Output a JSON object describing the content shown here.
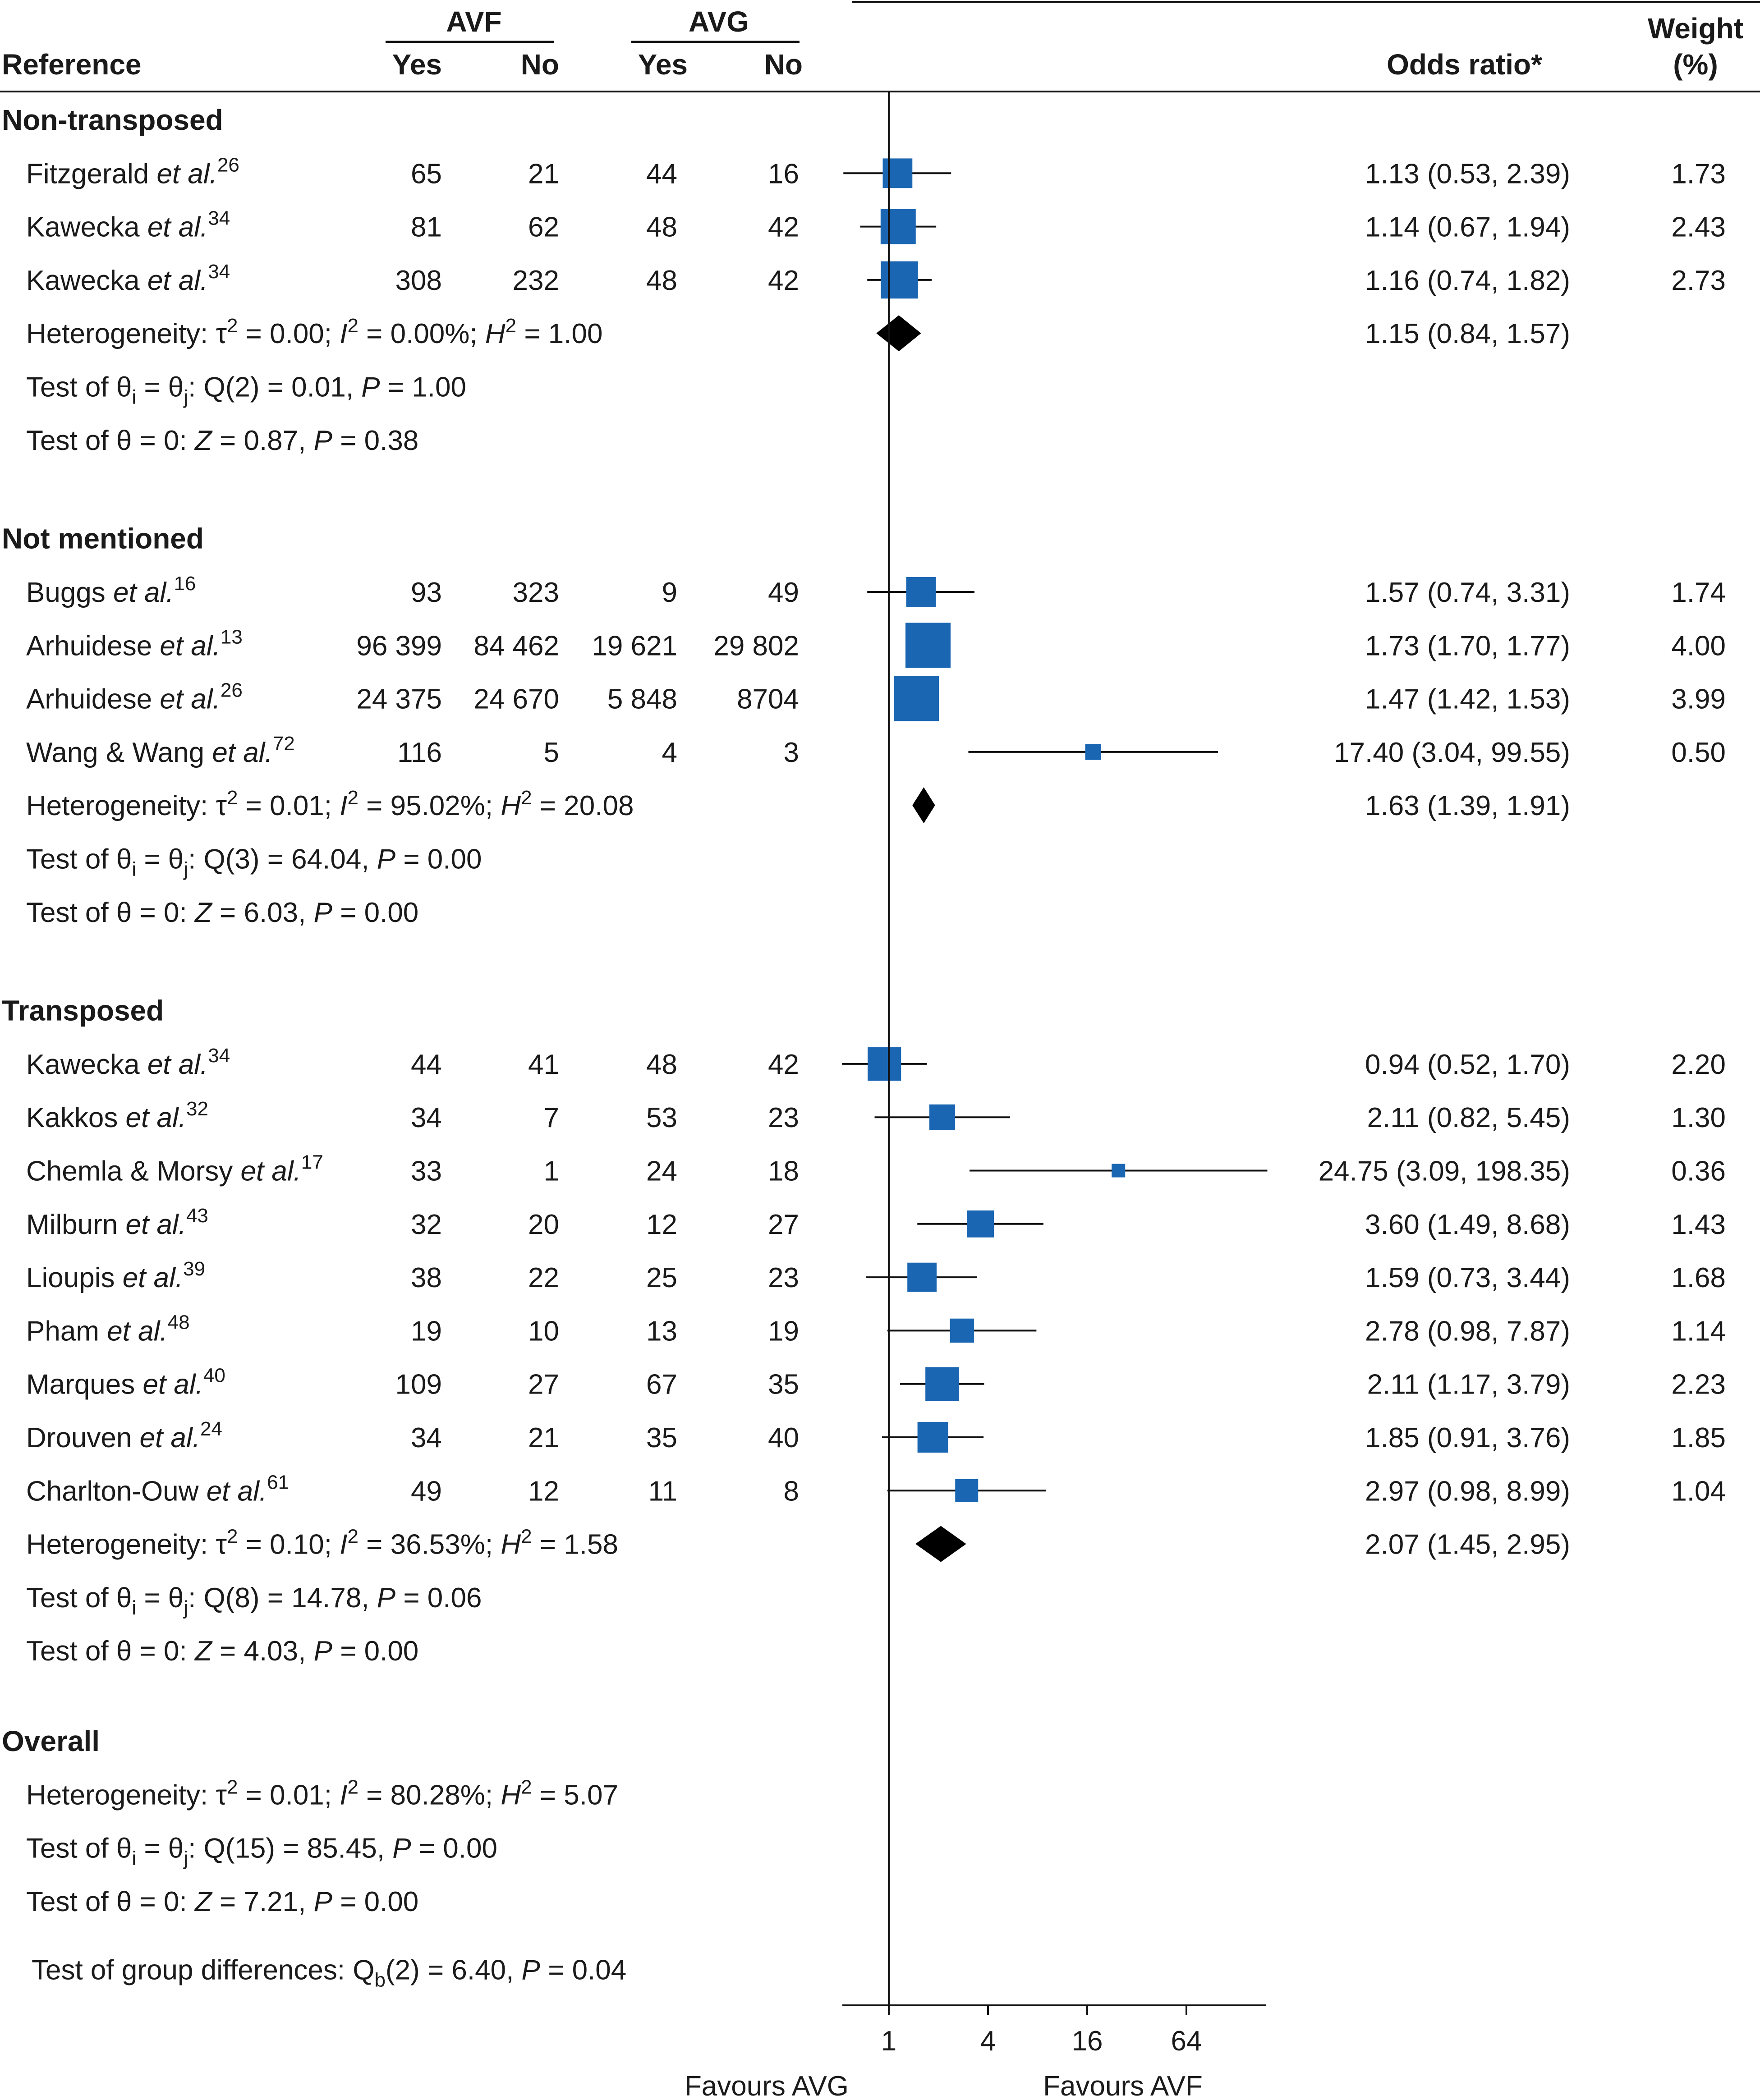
{
  "chart_data": {
    "type": "forest",
    "header": {
      "reference": "Reference",
      "group_a": "AVF",
      "group_b": "AVG",
      "yes": "Yes",
      "no": "No",
      "odds_ratio": "Odds ratio*",
      "weight_line1": "Weight",
      "weight_line2": "(%)"
    },
    "x_axis": {
      "scale": "log2",
      "ticks": [
        1,
        4,
        16,
        64
      ],
      "tick_labels": [
        "1",
        "4",
        "16",
        "64"
      ],
      "range": [
        0.5,
        250
      ],
      "left_label": "Favours AVG",
      "right_label": "Favours AVF"
    },
    "groups": [
      {
        "name": "Non-transposed",
        "studies": [
          {
            "author": "Fitzgerald",
            "etal": "et al.",
            "ref": "26",
            "avf_yes": "65",
            "avf_no": "21",
            "avg_yes": "44",
            "avg_no": "16",
            "or": 1.13,
            "lo": 0.53,
            "hi": 2.39,
            "or_text": "1.13 (0.53, 2.39)",
            "weight": 1.73,
            "weight_text": "1.73"
          },
          {
            "author": "Kawecka",
            "etal": "et al.",
            "ref": "34",
            "avf_yes": "81",
            "avf_no": "62",
            "avg_yes": "48",
            "avg_no": "42",
            "or": 1.14,
            "lo": 0.67,
            "hi": 1.94,
            "or_text": "1.14 (0.67, 1.94)",
            "weight": 2.43,
            "weight_text": "2.43"
          },
          {
            "author": "Kawecka",
            "etal": "et al.",
            "ref": "34",
            "avf_yes": "308",
            "avf_no": "232",
            "avg_yes": "48",
            "avg_no": "42",
            "or": 1.16,
            "lo": 0.74,
            "hi": 1.82,
            "or_text": "1.16 (0.74, 1.82)",
            "weight": 2.73,
            "weight_text": "2.73"
          }
        ],
        "pooled": {
          "or": 1.15,
          "lo": 0.84,
          "hi": 1.57,
          "or_text": "1.15 (0.84, 1.57)"
        },
        "heterogeneity": {
          "tau2": "0.00",
          "i2": "0.00%",
          "h2": "1.00"
        },
        "q_test": {
          "df": "2",
          "q": "0.01",
          "p": "1.00"
        },
        "z_test": {
          "z": "0.87",
          "p": "0.38"
        }
      },
      {
        "name": "Not mentioned",
        "studies": [
          {
            "author": "Buggs",
            "etal": "et al.",
            "ref": "16",
            "avf_yes": "93",
            "avf_no": "323",
            "avg_yes": "9",
            "avg_no": "49",
            "or": 1.57,
            "lo": 0.74,
            "hi": 3.31,
            "or_text": "1.57 (0.74, 3.31)",
            "weight": 1.74,
            "weight_text": "1.74"
          },
          {
            "author": "Arhuidese",
            "etal": "et al.",
            "ref": "13",
            "avf_yes": "96 399",
            "avf_no": "84 462",
            "avg_yes": "19 621",
            "avg_no": "29 802",
            "or": 1.73,
            "lo": 1.7,
            "hi": 1.77,
            "or_text": "1.73 (1.70, 1.77)",
            "weight": 4.0,
            "weight_text": "4.00"
          },
          {
            "author": "Arhuidese",
            "etal": "et al.",
            "ref": "26",
            "avf_yes": "24 375",
            "avf_no": "24 670",
            "avg_yes": "5 848",
            "avg_no": "8704",
            "or": 1.47,
            "lo": 1.42,
            "hi": 1.53,
            "or_text": "1.47 (1.42, 1.53)",
            "weight": 3.99,
            "weight_text": "3.99"
          },
          {
            "author": "Wang & Wang",
            "etal": "et al.",
            "ref": "72",
            "avf_yes": "116",
            "avf_no": "5",
            "avg_yes": "4",
            "avg_no": "3",
            "or": 17.4,
            "lo": 3.04,
            "hi": 99.55,
            "or_text": "17.40 (3.04, 99.55)",
            "weight": 0.5,
            "weight_text": "0.50"
          }
        ],
        "pooled": {
          "or": 1.63,
          "lo": 1.39,
          "hi": 1.91,
          "or_text": "1.63 (1.39, 1.91)"
        },
        "heterogeneity": {
          "tau2": "0.01",
          "i2": "95.02%",
          "h2": "20.08"
        },
        "q_test": {
          "df": "3",
          "q": "64.04",
          "p": "0.00"
        },
        "z_test": {
          "z": "6.03",
          "p": "0.00"
        }
      },
      {
        "name": "Transposed",
        "studies": [
          {
            "author": "Kawecka",
            "etal": "et al.",
            "ref": "34",
            "avf_yes": "44",
            "avf_no": "41",
            "avg_yes": "48",
            "avg_no": "42",
            "or": 0.94,
            "lo": 0.52,
            "hi": 1.7,
            "or_text": "0.94 (0.52, 1.70)",
            "weight": 2.2,
            "weight_text": "2.20"
          },
          {
            "author": "Kakkos",
            "etal": "et al.",
            "ref": "32",
            "avf_yes": "34",
            "avf_no": "7",
            "avg_yes": "53",
            "avg_no": "23",
            "or": 2.11,
            "lo": 0.82,
            "hi": 5.45,
            "or_text": "2.11 (0.82, 5.45)",
            "weight": 1.3,
            "weight_text": "1.30"
          },
          {
            "author": "Chemla & Morsy",
            "etal": "et al.",
            "ref": "17",
            "avf_yes": "33",
            "avf_no": "1",
            "avg_yes": "24",
            "avg_no": "18",
            "or": 24.75,
            "lo": 3.09,
            "hi": 198.35,
            "or_text": "24.75 (3.09, 198.35)",
            "weight": 0.36,
            "weight_text": "0.36"
          },
          {
            "author": "Milburn",
            "etal": "et al.",
            "ref": "43",
            "avf_yes": "32",
            "avf_no": "20",
            "avg_yes": "12",
            "avg_no": "27",
            "or": 3.6,
            "lo": 1.49,
            "hi": 8.68,
            "or_text": "3.60 (1.49, 8.68)",
            "weight": 1.43,
            "weight_text": "1.43"
          },
          {
            "author": "Lioupis",
            "etal": "et al.",
            "ref": "39",
            "avf_yes": "38",
            "avf_no": "22",
            "avg_yes": "25",
            "avg_no": "23",
            "or": 1.59,
            "lo": 0.73,
            "hi": 3.44,
            "or_text": "1.59 (0.73, 3.44)",
            "weight": 1.68,
            "weight_text": "1.68"
          },
          {
            "author": "Pham",
            "etal": "et al.",
            "ref": "48",
            "avf_yes": "19",
            "avf_no": "10",
            "avg_yes": "13",
            "avg_no": "19",
            "or": 2.78,
            "lo": 0.98,
            "hi": 7.87,
            "or_text": "2.78 (0.98, 7.87)",
            "weight": 1.14,
            "weight_text": "1.14"
          },
          {
            "author": "Marques",
            "etal": "et al.",
            "ref": "40",
            "avf_yes": "109",
            "avf_no": "27",
            "avg_yes": "67",
            "avg_no": "35",
            "or": 2.11,
            "lo": 1.17,
            "hi": 3.79,
            "or_text": "2.11 (1.17, 3.79)",
            "weight": 2.23,
            "weight_text": "2.23"
          },
          {
            "author": "Drouven",
            "etal": "et al.",
            "ref": "24",
            "avf_yes": "34",
            "avf_no": "21",
            "avg_yes": "35",
            "avg_no": "40",
            "or": 1.85,
            "lo": 0.91,
            "hi": 3.76,
            "or_text": "1.85 (0.91, 3.76)",
            "weight": 1.85,
            "weight_text": "1.85"
          },
          {
            "author": "Charlton-Ouw",
            "etal": "et al.",
            "ref": "61",
            "avf_yes": "49",
            "avf_no": "12",
            "avg_yes": "11",
            "avg_no": "8",
            "or": 2.97,
            "lo": 0.98,
            "hi": 8.99,
            "or_text": "2.97 (0.98, 8.99)",
            "weight": 1.04,
            "weight_text": "1.04"
          }
        ],
        "pooled": {
          "or": 2.07,
          "lo": 1.45,
          "hi": 2.95,
          "or_text": "2.07 (1.45, 2.95)"
        },
        "heterogeneity": {
          "tau2": "0.10",
          "i2": "36.53%",
          "h2": "1.58"
        },
        "q_test": {
          "df": "8",
          "q": "14.78",
          "p": "0.06"
        },
        "z_test": {
          "z": "4.03",
          "p": "0.00"
        }
      }
    ],
    "overall": {
      "name": "Overall",
      "heterogeneity": {
        "tau2": "0.01",
        "i2": "80.28%",
        "h2": "5.07"
      },
      "q_test": {
        "df": "15",
        "q": "85.45",
        "p": "0.00"
      },
      "z_test": {
        "z": "7.21",
        "p": "0.00"
      }
    },
    "group_difference": {
      "df": "2",
      "q": "6.40",
      "p": "0.04"
    },
    "colors": {
      "marker": "#1a66b3",
      "diamond": "#000000",
      "line": "#111111",
      "text": "#1a1a1a"
    }
  }
}
